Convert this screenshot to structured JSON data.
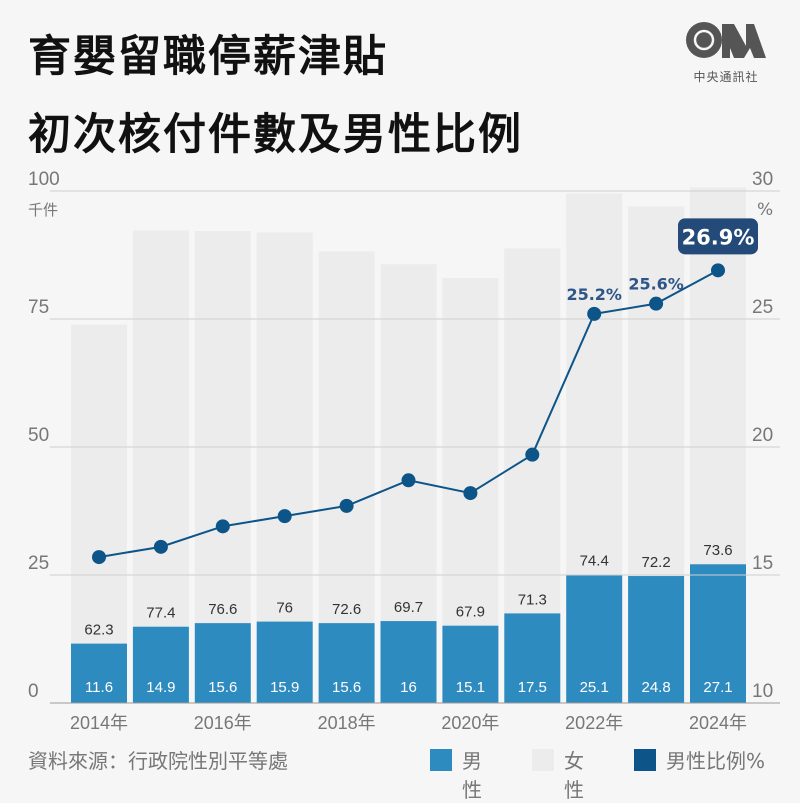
{
  "title_line1": "育嬰留職停薪津貼",
  "title_line2": "初次核付件數及男性比例",
  "logo": {
    "text": "CNA",
    "subtitle": "中央通訊社"
  },
  "source": "資料來源：行政院性別平等處",
  "legend": [
    {
      "label": "男性",
      "color": "#2e8bc0"
    },
    {
      "label": "女性",
      "color": "#ececec"
    },
    {
      "label": "男性比例%",
      "color": "#0d5489"
    }
  ],
  "chart_data": {
    "type": "bar",
    "stacked": true,
    "categories": [
      "2014",
      "2015",
      "2016",
      "2017",
      "2018",
      "2019",
      "2020",
      "2021",
      "2022",
      "2023",
      "2024"
    ],
    "x_tick_labels": [
      "2014年",
      "",
      "2016年",
      "",
      "2018年",
      "",
      "2020年",
      "",
      "2022年",
      "",
      "2024年"
    ],
    "left_axis": {
      "unit": "千件",
      "ylim": [
        0,
        100
      ],
      "ticks": [
        0,
        25,
        50,
        75,
        100
      ]
    },
    "right_axis": {
      "unit": "%",
      "ylim": [
        10,
        30
      ],
      "ticks": [
        10,
        15,
        20,
        25,
        30
      ]
    },
    "grid": true,
    "series": [
      {
        "name": "男性",
        "type": "bar",
        "color": "#2e8bc0",
        "values": [
          11.6,
          14.9,
          15.6,
          15.9,
          15.6,
          16,
          15.1,
          17.5,
          25.1,
          24.8,
          27.1
        ]
      },
      {
        "name": "女性",
        "type": "bar",
        "color": "#ececec",
        "values": [
          62.3,
          77.4,
          76.6,
          76,
          72.6,
          69.7,
          67.9,
          71.3,
          74.4,
          72.2,
          73.6
        ]
      },
      {
        "name": "男性比例%",
        "type": "line",
        "axis": "right",
        "color": "#0d5489",
        "values": [
          15.7,
          16.1,
          16.9,
          17.3,
          17.7,
          18.7,
          18.2,
          19.7,
          25.2,
          25.6,
          26.9
        ]
      }
    ],
    "line_data_labels": [
      "",
      "",
      "",
      "",
      "",
      "",
      "",
      "",
      "25.2%",
      "25.6%",
      "26.9%"
    ]
  }
}
